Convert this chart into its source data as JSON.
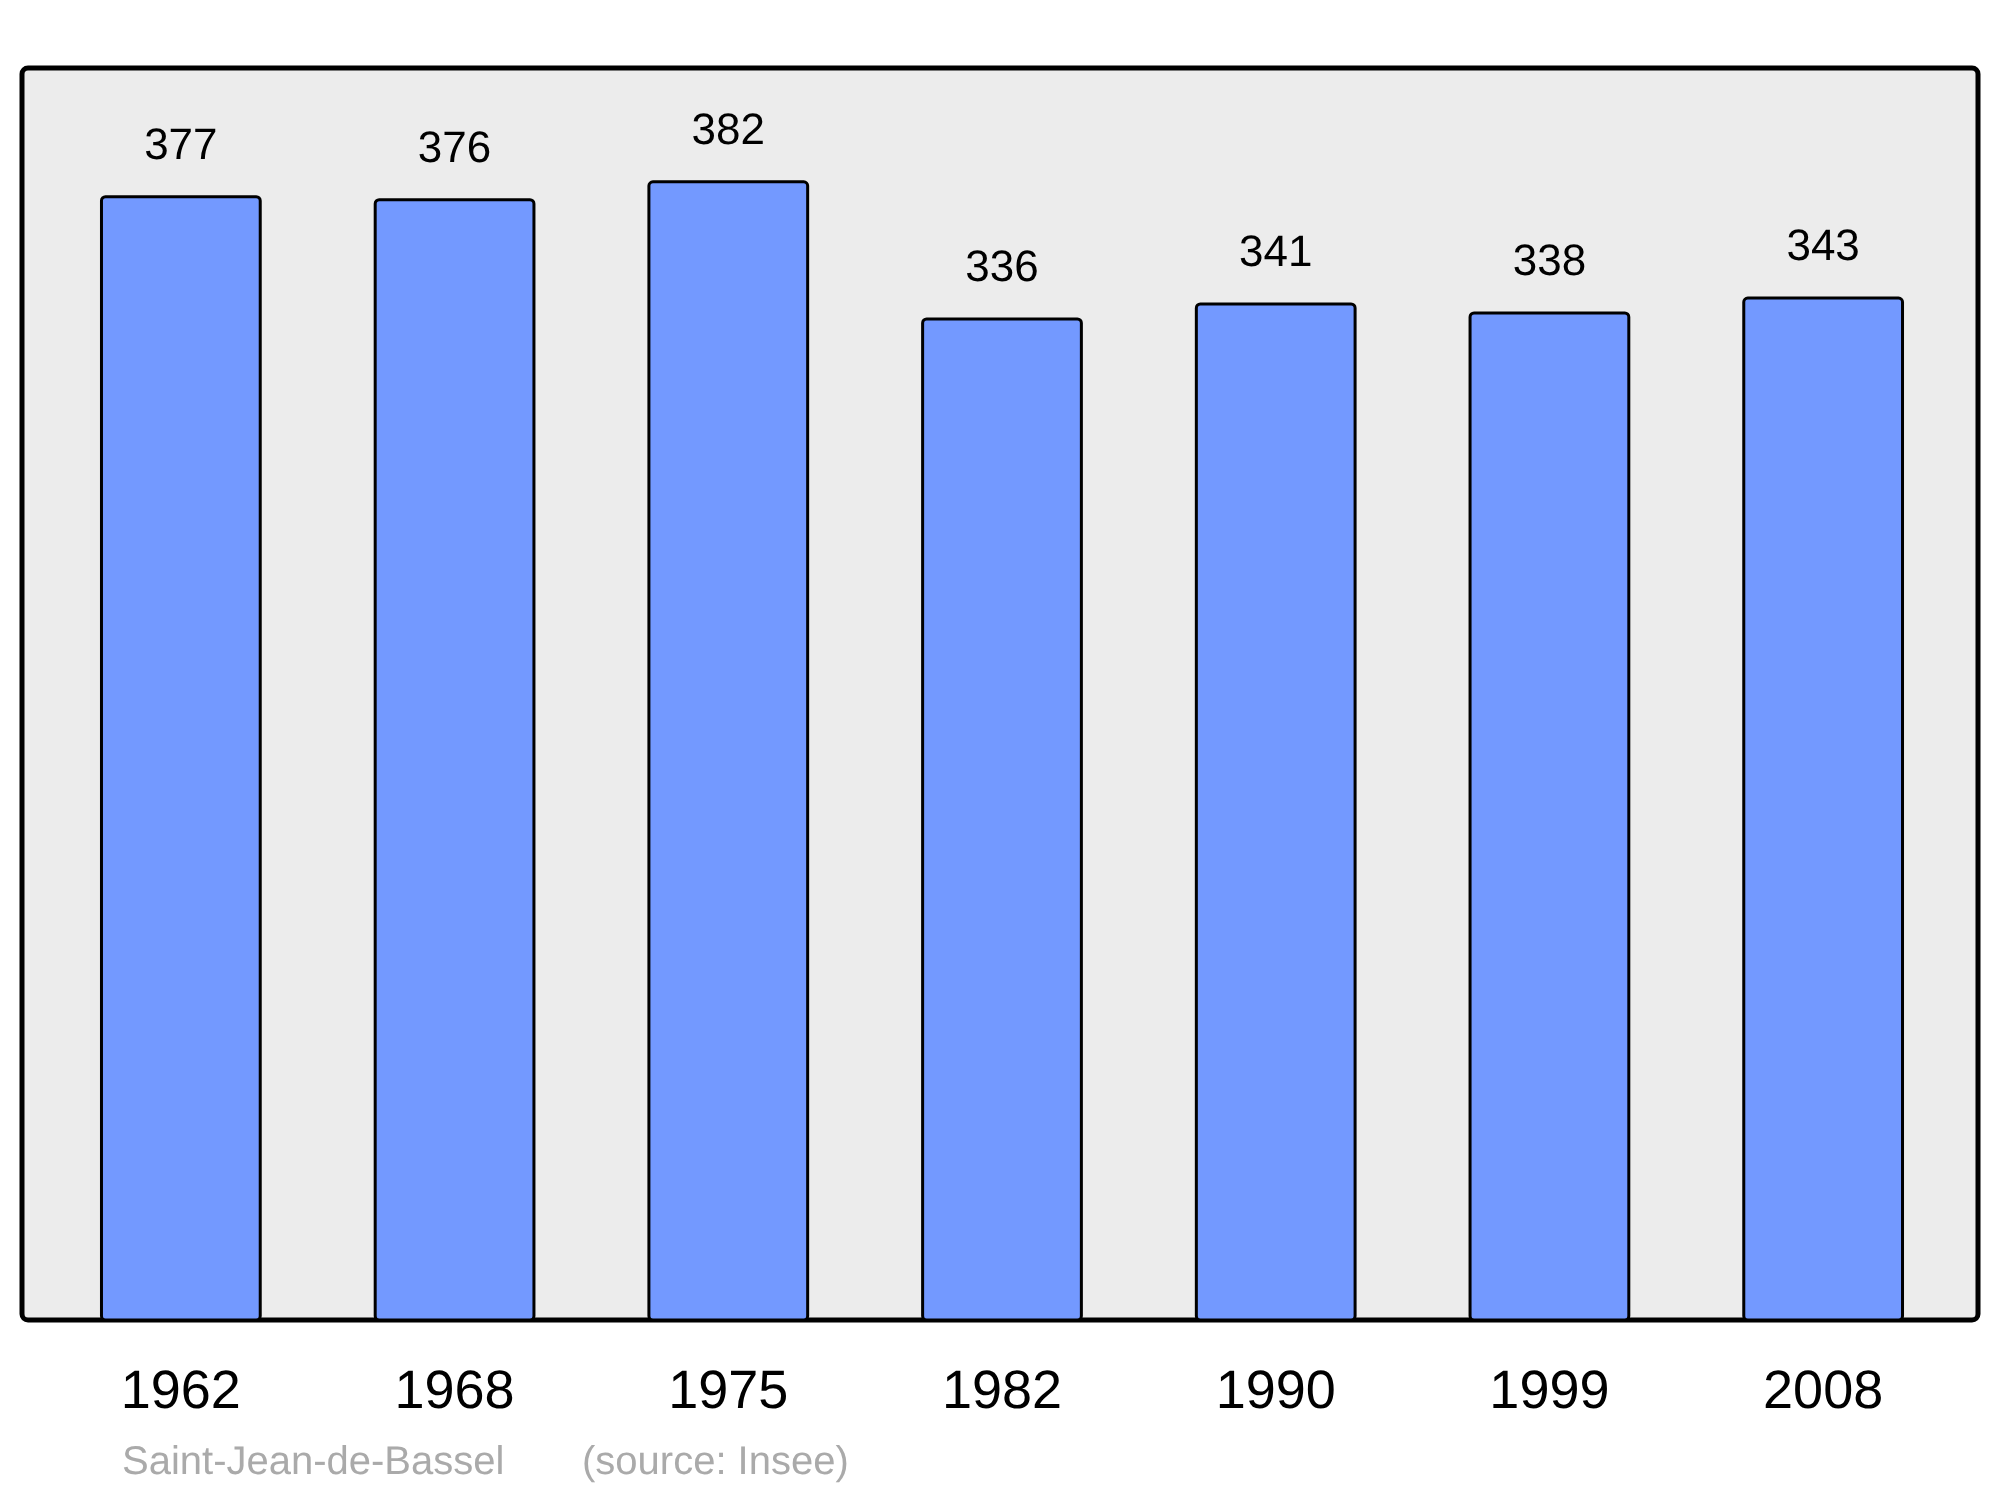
{
  "chart_data": {
    "type": "bar",
    "categories": [
      "1962",
      "1968",
      "1975",
      "1982",
      "1990",
      "1999",
      "2008"
    ],
    "values": [
      377,
      376,
      382,
      336,
      341,
      338,
      343
    ],
    "color": "#7399ff",
    "data_labels": true,
    "annotations": [
      "Saint-Jean-de-Bassel",
      "(source: Insee)"
    ]
  }
}
